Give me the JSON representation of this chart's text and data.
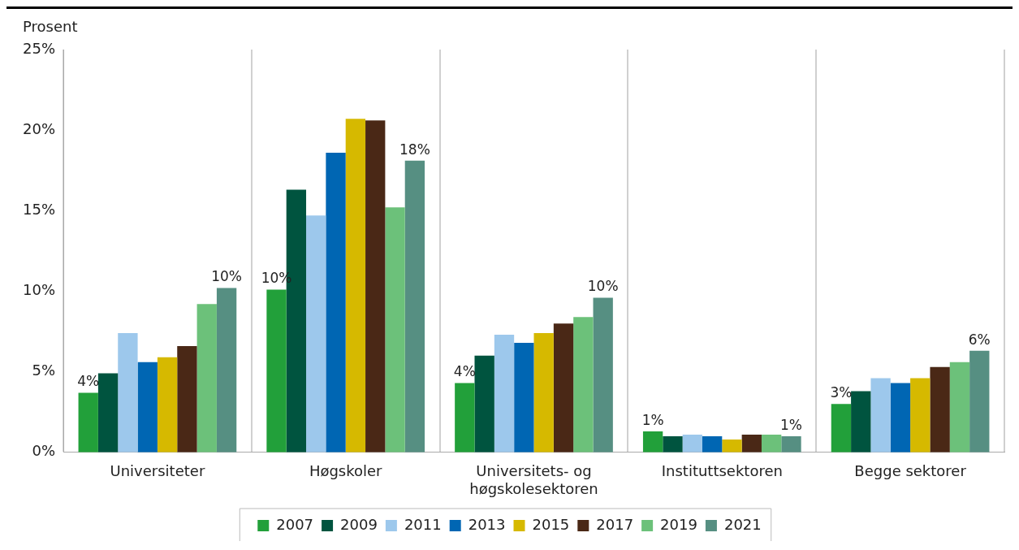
{
  "chart_data": {
    "type": "bar",
    "ylabel": "Prosent",
    "categories": [
      "Universiteter",
      "Høgskoler",
      "Universitets- og høgskolesektoren",
      "Instituttsektoren",
      "Begge sektorer"
    ],
    "ylim": [
      0,
      25
    ],
    "yticks": [
      {
        "value": 0,
        "label": "0%"
      },
      {
        "value": 5,
        "label": "5%"
      },
      {
        "value": 10,
        "label": "10%"
      },
      {
        "value": 15,
        "label": "15%"
      },
      {
        "value": 20,
        "label": "20%"
      },
      {
        "value": 25,
        "label": "25%"
      }
    ],
    "grid": "x",
    "legend": "bottom",
    "series": [
      {
        "name": "2007",
        "color": "#22a03a",
        "values": [
          3.7,
          10.1,
          4.3,
          1.3,
          3.0
        ],
        "value_labels": [
          "4%",
          "10%",
          "4%",
          "1%",
          "3%"
        ]
      },
      {
        "name": "2009",
        "color": "#00543f",
        "values": [
          4.9,
          16.3,
          6.0,
          1.0,
          3.8
        ]
      },
      {
        "name": "2011",
        "color": "#9dc8ec",
        "values": [
          7.4,
          14.7,
          7.3,
          1.1,
          4.6
        ]
      },
      {
        "name": "2013",
        "color": "#0066b3",
        "values": [
          5.6,
          18.6,
          6.8,
          1.0,
          4.3
        ]
      },
      {
        "name": "2015",
        "color": "#d6b900",
        "values": [
          5.9,
          20.7,
          7.4,
          0.8,
          4.6
        ]
      },
      {
        "name": "2017",
        "color": "#4a2816",
        "values": [
          6.6,
          20.6,
          8.0,
          1.1,
          5.3
        ]
      },
      {
        "name": "2019",
        "color": "#6cc17a",
        "values": [
          9.2,
          15.2,
          8.4,
          1.1,
          5.6
        ]
      },
      {
        "name": "2021",
        "color": "#568f82",
        "values": [
          10.2,
          18.1,
          9.6,
          1.0,
          6.3
        ],
        "value_labels": [
          "10%",
          "18%",
          "10%",
          "1%",
          "6%"
        ]
      }
    ]
  }
}
